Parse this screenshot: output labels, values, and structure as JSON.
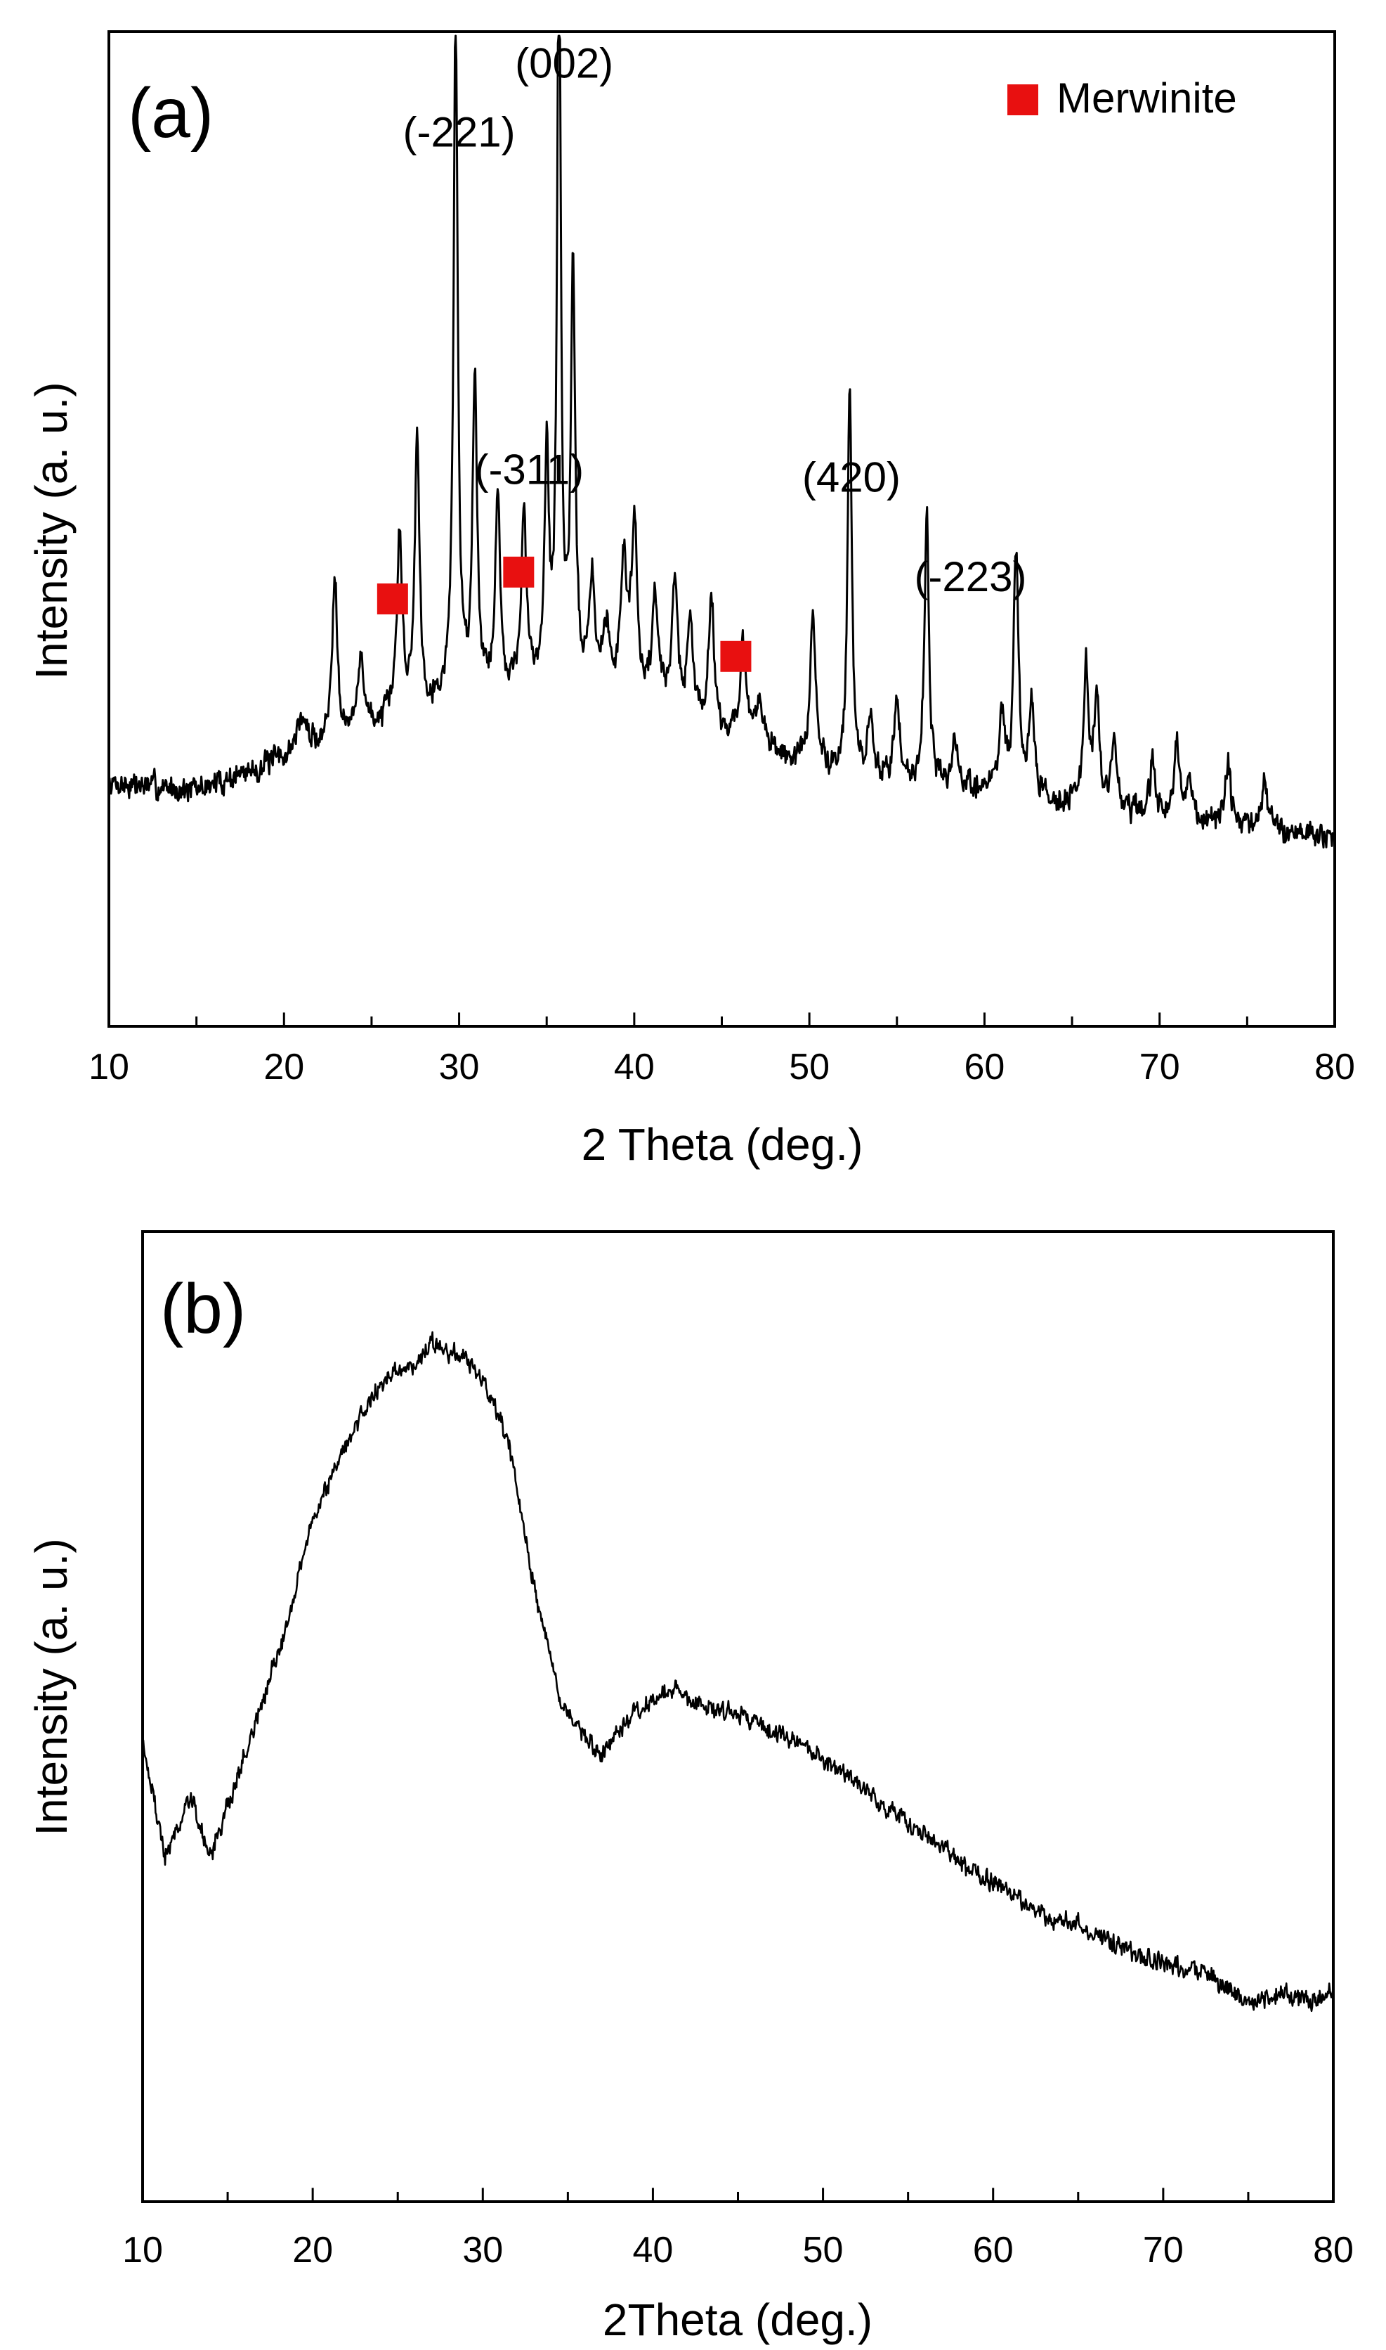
{
  "figure": "XRD patterns",
  "colors": {
    "line": "#000000",
    "marker": "#e81010"
  },
  "chart_data": [
    {
      "type": "line",
      "panel_label": "(a)",
      "title": "",
      "xlabel": "2 Theta (deg.)",
      "ylabel": "Intensity (a. u.)",
      "xlim": [
        10,
        80
      ],
      "ylim": [
        0,
        100
      ],
      "xticks": [
        10,
        20,
        30,
        40,
        50,
        60,
        70,
        80
      ],
      "xtick_labels": [
        "10",
        "20",
        "30",
        "40",
        "50",
        "60",
        "70",
        "80"
      ],
      "grid": false,
      "legend": {
        "position": "top-right",
        "entries": [
          {
            "label": "Merwinite",
            "marker": "square",
            "color": "#e81010"
          }
        ]
      },
      "baseline": [
        [
          10,
          18
        ],
        [
          15,
          17
        ],
        [
          20,
          21
        ],
        [
          25,
          25
        ],
        [
          30,
          29
        ],
        [
          35,
          31
        ],
        [
          40,
          29
        ],
        [
          45,
          24
        ],
        [
          50,
          20
        ],
        [
          55,
          18
        ],
        [
          60,
          17
        ],
        [
          65,
          15
        ],
        [
          70,
          13
        ],
        [
          75,
          12
        ],
        [
          80,
          11
        ]
      ],
      "peaks": [
        [
          21,
          4.5,
          0.35
        ],
        [
          22.9,
          22,
          0.18
        ],
        [
          24.4,
          10,
          0.2
        ],
        [
          26.6,
          24,
          0.18
        ],
        [
          27.6,
          36,
          0.16
        ],
        [
          29.8,
          90,
          0.14
        ],
        [
          30.9,
          40,
          0.16
        ],
        [
          32.2,
          25,
          0.16
        ],
        [
          33.7,
          22,
          0.16
        ],
        [
          35.0,
          30,
          0.14
        ],
        [
          35.7,
          102,
          0.12
        ],
        [
          36.5,
          52,
          0.15
        ],
        [
          37.6,
          14,
          0.18
        ],
        [
          38.4,
          8,
          0.2
        ],
        [
          39.4,
          17,
          0.2
        ],
        [
          40.0,
          22,
          0.2
        ],
        [
          41.2,
          14,
          0.2
        ],
        [
          42.3,
          17,
          0.2
        ],
        [
          43.2,
          12,
          0.2
        ],
        [
          44.4,
          17,
          0.2
        ],
        [
          46.2,
          13,
          0.2
        ],
        [
          47.2,
          6,
          0.25
        ],
        [
          50.2,
          20,
          0.18
        ],
        [
          52.3,
          50,
          0.14
        ],
        [
          53.5,
          7,
          0.18
        ],
        [
          55.0,
          11,
          0.18
        ],
        [
          56.7,
          36,
          0.15
        ],
        [
          58.3,
          5,
          0.2
        ],
        [
          61.0,
          10,
          0.2
        ],
        [
          61.8,
          31,
          0.16
        ],
        [
          62.7,
          12,
          0.2
        ],
        [
          65.8,
          19,
          0.16
        ],
        [
          66.4,
          15,
          0.16
        ],
        [
          67.4,
          9,
          0.2
        ],
        [
          69.6,
          7,
          0.2
        ],
        [
          71.0,
          9,
          0.2
        ],
        [
          71.7,
          6,
          0.2
        ],
        [
          73.9,
          8,
          0.2
        ],
        [
          76.0,
          7,
          0.2
        ]
      ],
      "noise": 2.2,
      "seed": 7,
      "annotations": [
        {
          "text": "(-221)",
          "x": 30.0,
          "y": 101
        },
        {
          "text": "(002)",
          "x": 36.0,
          "y": 110
        },
        {
          "text": "(-311)",
          "x": 34.0,
          "y": 57
        },
        {
          "text": "(420)",
          "x": 52.4,
          "y": 56
        },
        {
          "text": "(-223)",
          "x": 59.2,
          "y": 43
        }
      ],
      "markers": [
        {
          "x": 26.2,
          "y": 42,
          "label": "Merwinite"
        },
        {
          "x": 33.4,
          "y": 45.5,
          "label": "Merwinite"
        },
        {
          "x": 45.8,
          "y": 34.5,
          "label": "Merwinite"
        }
      ]
    },
    {
      "type": "line",
      "panel_label": "(b)",
      "title": "",
      "xlabel": "2Theta (deg.)",
      "ylabel": "Intensity (a. u.)",
      "xlim": [
        10,
        80
      ],
      "ylim": [
        0,
        100
      ],
      "xticks": [
        10,
        20,
        30,
        40,
        50,
        60,
        70,
        80
      ],
      "xtick_labels": [
        "10",
        "20",
        "30",
        "40",
        "50",
        "60",
        "70",
        "80"
      ],
      "grid": false,
      "legend": null,
      "baseline": [
        [
          10,
          42
        ],
        [
          11.3,
          28
        ],
        [
          12.8,
          35
        ],
        [
          14,
          28
        ],
        [
          16,
          40
        ],
        [
          18,
          52
        ],
        [
          20,
          68
        ],
        [
          22,
          77
        ],
        [
          24,
          84
        ],
        [
          26,
          86
        ],
        [
          27,
          89
        ],
        [
          28,
          87
        ],
        [
          29,
          87
        ],
        [
          30,
          84
        ],
        [
          31.5,
          77
        ],
        [
          33,
          60
        ],
        [
          34.5,
          47
        ],
        [
          36,
          42
        ],
        [
          37,
          40
        ],
        [
          39,
          45
        ],
        [
          41,
          48
        ],
        [
          43,
          46
        ],
        [
          45,
          45
        ],
        [
          47,
          43
        ],
        [
          49,
          41
        ],
        [
          51,
          38
        ],
        [
          53,
          35
        ],
        [
          55,
          32
        ],
        [
          57,
          29
        ],
        [
          59,
          26
        ],
        [
          61,
          24
        ],
        [
          63,
          21
        ],
        [
          65,
          20
        ],
        [
          67,
          18
        ],
        [
          69,
          16
        ],
        [
          71,
          15
        ],
        [
          73,
          14
        ],
        [
          75,
          11
        ],
        [
          77,
          12
        ],
        [
          79,
          11
        ],
        [
          80,
          13
        ]
      ],
      "noise": 1.5,
      "seed": 19,
      "annotations": [],
      "markers": []
    }
  ]
}
